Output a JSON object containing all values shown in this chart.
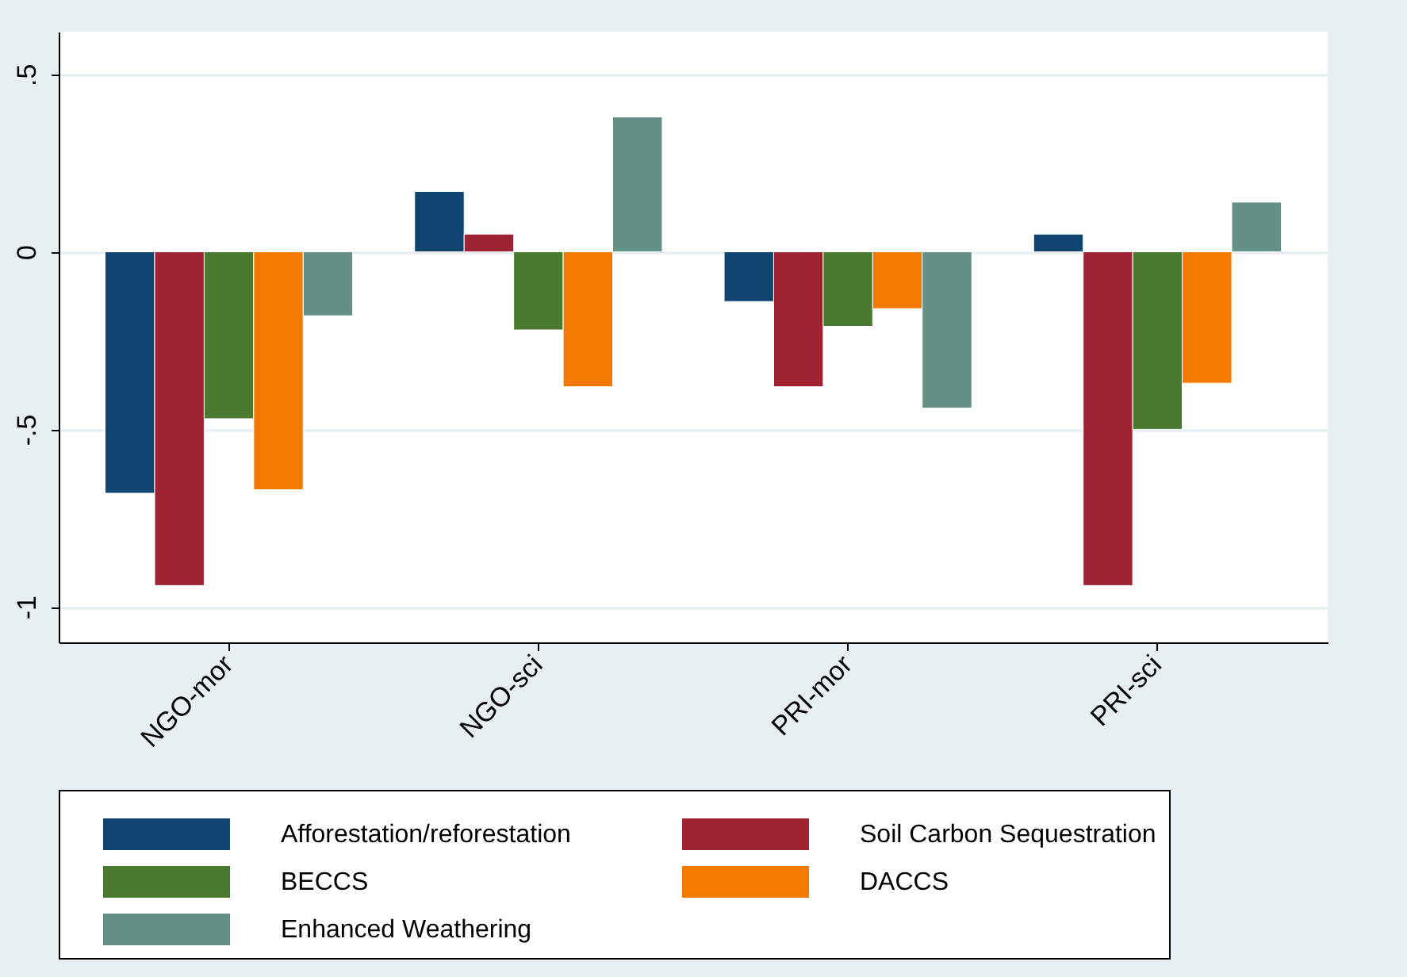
{
  "chart_data": {
    "type": "bar",
    "categories": [
      "NGO-mor",
      "NGO-sci",
      "PRI-mor",
      "PRI-sci"
    ],
    "series": [
      {
        "name": "Afforestation/reforestation",
        "color": "#0f4470",
        "values": [
          -0.68,
          0.17,
          -0.14,
          0.05
        ]
      },
      {
        "name": "Soil Carbon Sequestration",
        "color": "#9e2333",
        "values": [
          -0.94,
          0.05,
          -0.38,
          -0.94
        ]
      },
      {
        "name": "BECCS",
        "color": "#4a7a2f",
        "values": [
          -0.47,
          -0.22,
          -0.21,
          -0.5
        ]
      },
      {
        "name": "DACCS",
        "color": "#f27a00",
        "values": [
          -0.67,
          -0.38,
          -0.16,
          -0.37
        ]
      },
      {
        "name": "Enhanced Weathering",
        "color": "#659085",
        "values": [
          -0.18,
          0.38,
          -0.44,
          0.14
        ]
      }
    ],
    "ylim": [
      -1.1,
      0.62
    ],
    "yticks": [
      {
        "value": 0.5,
        "label": ".5"
      },
      0,
      {
        "value": -0.5,
        "label": "-.5"
      },
      -1
    ],
    "grid": "y",
    "legend": "bottom"
  }
}
